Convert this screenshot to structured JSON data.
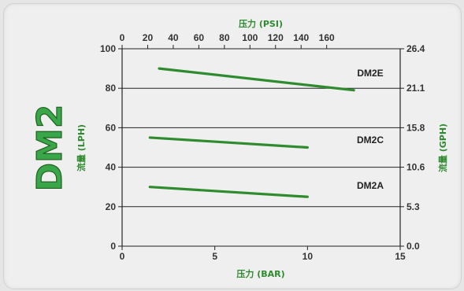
{
  "colors": {
    "accent": "#2e8b2e",
    "model_text": "#3aa64a",
    "axis": "#222222",
    "grid": "#222222"
  },
  "model_label": "DM2",
  "chart_data": {
    "type": "line",
    "xlabel_bottom": "压力 (BAR)",
    "xlabel_top": "压力 (PSI)",
    "ylabel_left": "流量 (LPH)",
    "ylabel_right": "流量 (GPH)",
    "xlim": [
      0,
      15
    ],
    "ylim": [
      0,
      100
    ],
    "xticks_bottom": [
      "0",
      "5",
      "10",
      "15"
    ],
    "xticks_top": [
      "0",
      "20",
      "40",
      "60",
      "80",
      "100",
      "120",
      "140",
      "160"
    ],
    "yticks_left": [
      "0",
      "20",
      "40",
      "60",
      "80",
      "100"
    ],
    "yticks_right": [
      "0.0",
      "5.3",
      "10.6",
      "15.8",
      "21.1",
      "26.4"
    ],
    "grid": "horizontal",
    "series": [
      {
        "name": "DM2E",
        "x": [
          2,
          12.5
        ],
        "y": [
          90,
          79
        ]
      },
      {
        "name": "DM2C",
        "x": [
          1.5,
          10
        ],
        "y": [
          55,
          50
        ]
      },
      {
        "name": "DM2A",
        "x": [
          1.5,
          10
        ],
        "y": [
          30,
          25
        ]
      }
    ]
  }
}
